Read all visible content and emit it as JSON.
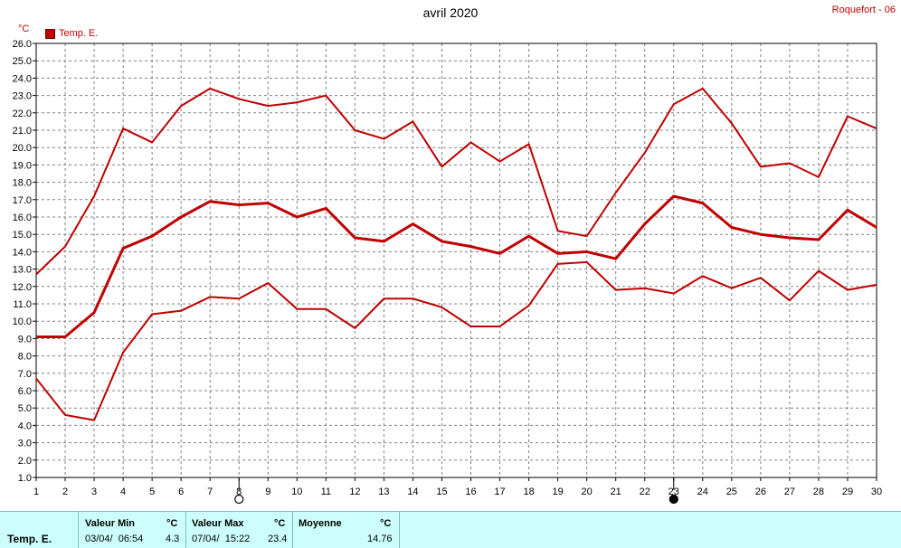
{
  "header": {
    "title": "avril 2020",
    "station": "Roquefort - 06",
    "unit": "°C",
    "legend_label": "Temp. E."
  },
  "colors": {
    "series": "#c00000",
    "grid": "#808080",
    "footer_bg": "#ccfffb"
  },
  "moon_phases": [
    {
      "day": 8,
      "phase": "full-moon"
    },
    {
      "day": 23,
      "phase": "new-moon"
    }
  ],
  "chart_data": {
    "type": "line",
    "title": "avril 2020",
    "ylabel": "°C",
    "xlim": [
      1,
      30
    ],
    "ylim": [
      1.0,
      26.0
    ],
    "grid": true,
    "legend": "top-left",
    "x": [
      1,
      2,
      3,
      4,
      5,
      6,
      7,
      8,
      9,
      10,
      11,
      12,
      13,
      14,
      15,
      16,
      17,
      18,
      19,
      20,
      21,
      22,
      23,
      24,
      25,
      26,
      27,
      28,
      29,
      30
    ],
    "series": [
      {
        "name": "Temp. E.",
        "role": "max",
        "values": [
          12.7,
          14.3,
          17.2,
          21.1,
          20.3,
          22.4,
          23.4,
          22.8,
          22.4,
          22.6,
          23.0,
          21.0,
          20.5,
          21.5,
          18.9,
          20.3,
          19.2,
          20.2,
          15.2,
          14.9,
          17.4,
          19.7,
          22.5,
          23.4,
          21.4,
          18.9,
          19.1,
          18.3,
          21.8,
          21.1
        ]
      },
      {
        "name": "Temp. E.",
        "role": "mean",
        "values": [
          9.1,
          9.1,
          10.5,
          14.2,
          14.9,
          16.0,
          16.9,
          16.7,
          16.8,
          16.0,
          16.5,
          14.8,
          14.6,
          15.6,
          14.6,
          14.3,
          13.9,
          14.9,
          13.9,
          14.0,
          13.6,
          15.6,
          17.2,
          16.8,
          15.4,
          15.0,
          14.8,
          14.7,
          16.4,
          15.4
        ]
      },
      {
        "name": "Temp. E.",
        "role": "min",
        "values": [
          6.7,
          4.6,
          4.3,
          8.2,
          10.4,
          10.6,
          11.4,
          11.3,
          12.2,
          10.7,
          10.7,
          9.6,
          11.3,
          11.3,
          10.8,
          9.7,
          9.7,
          10.9,
          13.3,
          13.4,
          11.8,
          11.9,
          11.6,
          12.6,
          11.9,
          12.5,
          11.2,
          12.9,
          11.8,
          12.1
        ]
      }
    ]
  },
  "footer": {
    "series_name": "Temp. E.",
    "min_header": "Valeur Min",
    "min_unit": "°C",
    "min_date": "03/04/  06:54",
    "min_value": "4.3",
    "max_header": "Valeur Max",
    "max_unit": "°C",
    "max_date": "07/04/  15:22",
    "max_value": "23.4",
    "mean_header": "Moyenne",
    "mean_unit": "°C",
    "mean_value": "14.76"
  }
}
